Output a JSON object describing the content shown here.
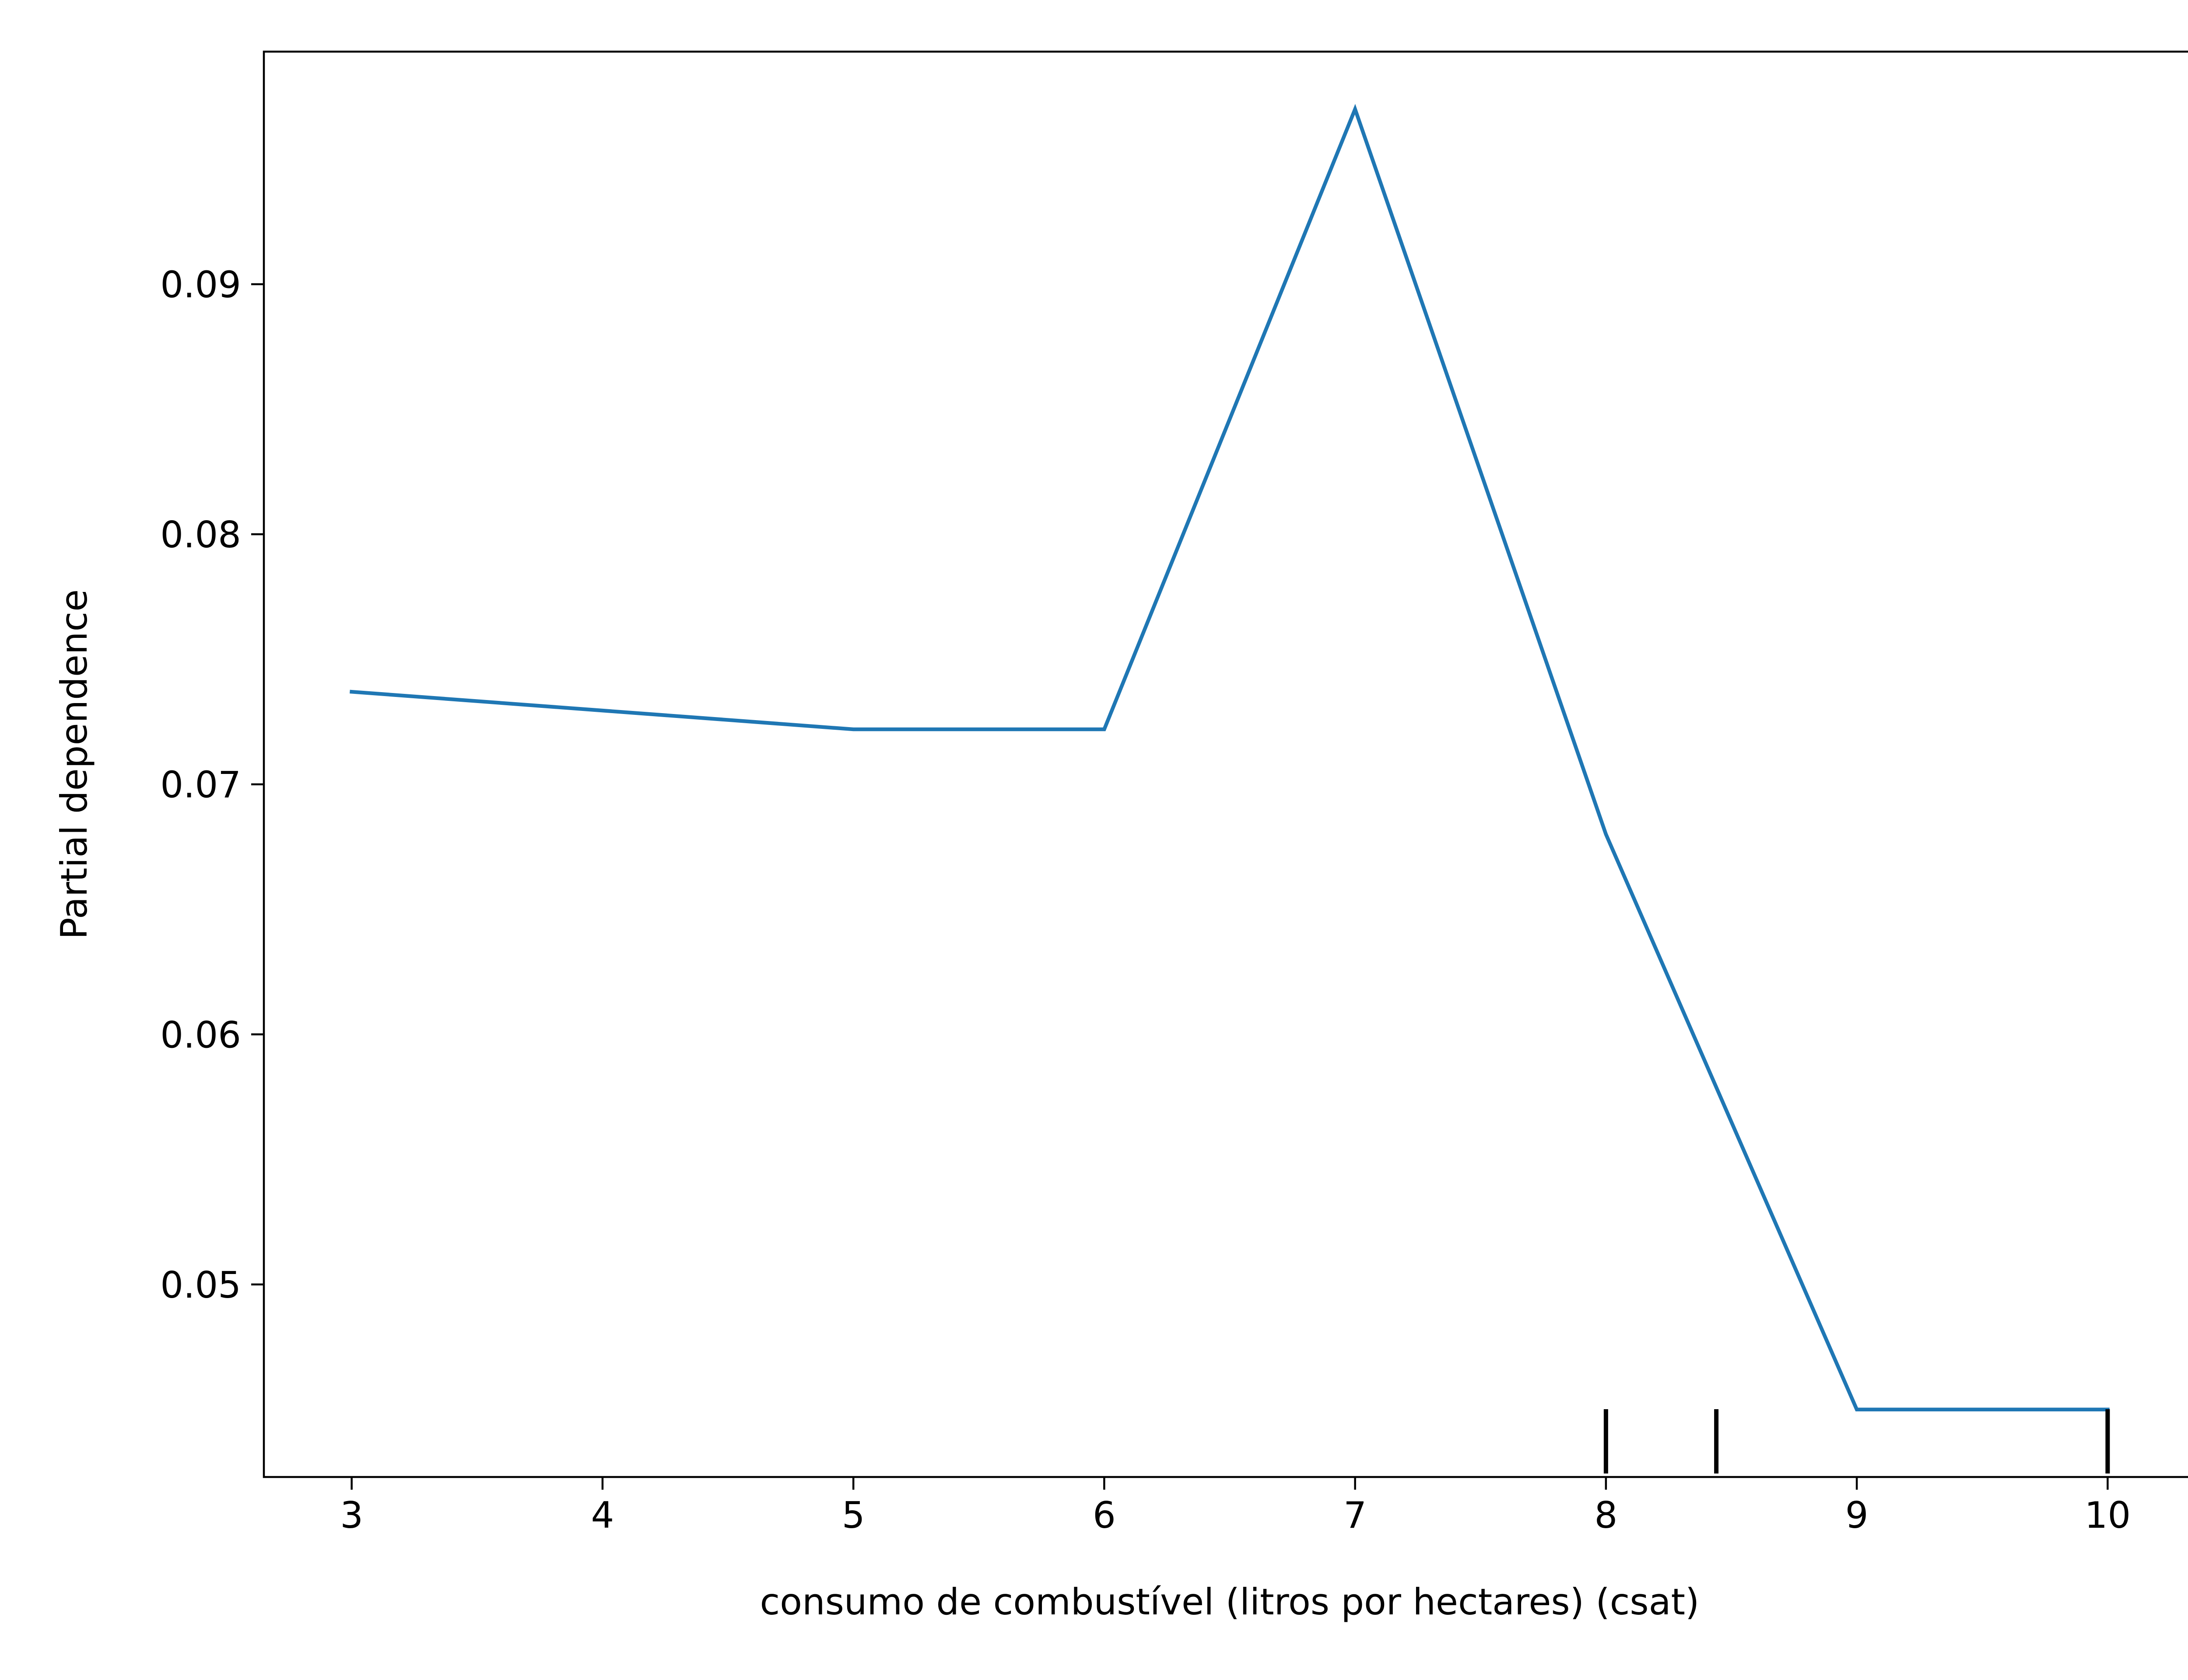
{
  "chart_data": {
    "type": "line",
    "title": "",
    "xlabel": "consumo de combustível (litros por hectares) (csat)",
    "ylabel": "Partial dependence",
    "xlim": [
      2.65,
      10.35
    ],
    "ylim": [
      0.0423,
      0.0993
    ],
    "x_ticks": [
      3,
      4,
      5,
      6,
      7,
      8,
      9,
      10
    ],
    "x_tick_labels": [
      "3",
      "4",
      "5",
      "6",
      "7",
      "8",
      "9",
      "10"
    ],
    "y_ticks": [
      0.05,
      0.06,
      0.07,
      0.08,
      0.09
    ],
    "y_tick_labels": [
      "0.05",
      "0.06",
      "0.07",
      "0.08",
      "0.09"
    ],
    "grid": false,
    "series": [
      {
        "color": "#1f77b4",
        "x": [
          3,
          5,
          6,
          7,
          8,
          9,
          10
        ],
        "y": [
          0.0737,
          0.0722,
          0.0722,
          0.097,
          0.068,
          0.045,
          0.045
        ]
      }
    ],
    "rug": {
      "color": "#000000",
      "x": [
        8,
        8.44,
        10
      ]
    }
  }
}
